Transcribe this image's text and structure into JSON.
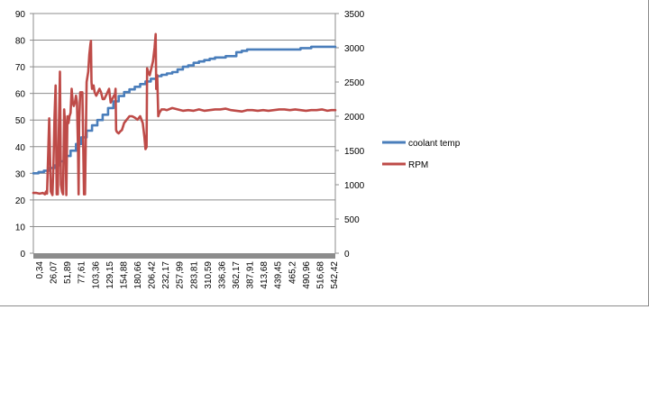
{
  "chart_data": {
    "type": "line",
    "title": "",
    "xlabel": "",
    "ylabel": "",
    "y_left": {
      "ticks": [
        0,
        10,
        20,
        30,
        40,
        50,
        60,
        70,
        80,
        90
      ],
      "lim": [
        0,
        90
      ]
    },
    "y_right": {
      "ticks": [
        0,
        500,
        1000,
        1500,
        2000,
        2500,
        3000,
        3500
      ],
      "lim": [
        0,
        3500
      ]
    },
    "x_tick_labels": [
      "0,34",
      "26,07",
      "51,89",
      "77,61",
      "103,36",
      "129,15",
      "154,88",
      "180,66",
      "206,42",
      "232,17",
      "257,99",
      "283,81",
      "310,59",
      "336,36",
      "362,17",
      "387,91",
      "413,68",
      "439,45",
      "465,2",
      "490,96",
      "516,68",
      "542,42"
    ],
    "x_range": [
      0.34,
      565
    ],
    "gridlines": "horizontal",
    "legend_position": "right",
    "series": [
      {
        "name": "coolant temp",
        "axis": "left",
        "color": "#4a7ebb",
        "points": [
          [
            0.34,
            30
          ],
          [
            10,
            30.5
          ],
          [
            20,
            31
          ],
          [
            30,
            32
          ],
          [
            40,
            33
          ],
          [
            50,
            34.5
          ],
          [
            60,
            36.5
          ],
          [
            70,
            38.5
          ],
          [
            80,
            41
          ],
          [
            90,
            43.5
          ],
          [
            100,
            46
          ],
          [
            110,
            48
          ],
          [
            120,
            50
          ],
          [
            130,
            52
          ],
          [
            140,
            54.5
          ],
          [
            150,
            57
          ],
          [
            160,
            59
          ],
          [
            170,
            60.5
          ],
          [
            180,
            61.5
          ],
          [
            190,
            62.5
          ],
          [
            200,
            63.5
          ],
          [
            210,
            64.5
          ],
          [
            220,
            65.5
          ],
          [
            230,
            66.5
          ],
          [
            240,
            67
          ],
          [
            250,
            67.5
          ],
          [
            260,
            68
          ],
          [
            270,
            69
          ],
          [
            280,
            70
          ],
          [
            290,
            70.5
          ],
          [
            300,
            71.5
          ],
          [
            310,
            72
          ],
          [
            320,
            72.5
          ],
          [
            330,
            73
          ],
          [
            340,
            73.5
          ],
          [
            350,
            73.5
          ],
          [
            360,
            74
          ],
          [
            370,
            74
          ],
          [
            380,
            75.5
          ],
          [
            390,
            76
          ],
          [
            400,
            76.5
          ],
          [
            420,
            76.5
          ],
          [
            440,
            76.5
          ],
          [
            460,
            76.5
          ],
          [
            480,
            76.5
          ],
          [
            500,
            77
          ],
          [
            520,
            77.5
          ],
          [
            540,
            77.5
          ],
          [
            565,
            77.5
          ]
        ]
      },
      {
        "name": "RPM",
        "axis": "right",
        "color": "#be4b48",
        "points": [
          [
            0.34,
            880
          ],
          [
            6,
            880
          ],
          [
            12,
            870
          ],
          [
            18,
            880
          ],
          [
            22,
            860
          ],
          [
            24,
            900
          ],
          [
            26,
            870
          ],
          [
            30,
            1970
          ],
          [
            33,
            900
          ],
          [
            36,
            850
          ],
          [
            38,
            1300
          ],
          [
            40,
            2000
          ],
          [
            42,
            2450
          ],
          [
            44,
            860
          ],
          [
            46,
            860
          ],
          [
            48,
            1800
          ],
          [
            50,
            2650
          ],
          [
            52,
            1000
          ],
          [
            54,
            900
          ],
          [
            56,
            860
          ],
          [
            58,
            2100
          ],
          [
            60,
            1850
          ],
          [
            62,
            850
          ],
          [
            64,
            2000
          ],
          [
            66,
            1900
          ],
          [
            68,
            2000
          ],
          [
            70,
            2050
          ],
          [
            72,
            2400
          ],
          [
            74,
            2200
          ],
          [
            76,
            2150
          ],
          [
            78,
            2200
          ],
          [
            80,
            2300
          ],
          [
            82,
            2200
          ],
          [
            84,
            1500
          ],
          [
            85,
            860
          ],
          [
            86,
            1900
          ],
          [
            88,
            2350
          ],
          [
            92,
            2350
          ],
          [
            95,
            860
          ],
          [
            97,
            860
          ],
          [
            100,
            2500
          ],
          [
            103,
            2650
          ],
          [
            105,
            2900
          ],
          [
            107,
            3050
          ],
          [
            108,
            3100
          ],
          [
            109,
            2500
          ],
          [
            110,
            2400
          ],
          [
            113,
            2450
          ],
          [
            115,
            2350
          ],
          [
            118,
            2300
          ],
          [
            121,
            2350
          ],
          [
            124,
            2400
          ],
          [
            127,
            2350
          ],
          [
            130,
            2250
          ],
          [
            133,
            2250
          ],
          [
            136,
            2300
          ],
          [
            139,
            2350
          ],
          [
            142,
            2400
          ],
          [
            145,
            2200
          ],
          [
            148,
            2250
          ],
          [
            151,
            2300
          ],
          [
            153,
            2320
          ],
          [
            154,
            2400
          ],
          [
            155,
            1800
          ],
          [
            156,
            1780
          ],
          [
            158,
            1760
          ],
          [
            160,
            1750
          ],
          [
            163,
            1780
          ],
          [
            166,
            1800
          ],
          [
            170,
            1900
          ],
          [
            175,
            1950
          ],
          [
            180,
            2000
          ],
          [
            185,
            2000
          ],
          [
            190,
            1980
          ],
          [
            195,
            1950
          ],
          [
            200,
            2000
          ],
          [
            205,
            1900
          ],
          [
            208,
            1700
          ],
          [
            210,
            1520
          ],
          [
            212,
            1550
          ],
          [
            213,
            2700
          ],
          [
            215,
            2650
          ],
          [
            218,
            2600
          ],
          [
            221,
            2700
          ],
          [
            224,
            2800
          ],
          [
            227,
            3000
          ],
          [
            229,
            3200
          ],
          [
            230,
            2400
          ],
          [
            231,
            2550
          ],
          [
            232,
            2600
          ],
          [
            234,
            2000
          ],
          [
            236,
            2050
          ],
          [
            240,
            2100
          ],
          [
            245,
            2100
          ],
          [
            250,
            2090
          ],
          [
            260,
            2120
          ],
          [
            270,
            2100
          ],
          [
            280,
            2080
          ],
          [
            290,
            2090
          ],
          [
            300,
            2080
          ],
          [
            310,
            2100
          ],
          [
            320,
            2080
          ],
          [
            330,
            2090
          ],
          [
            340,
            2100
          ],
          [
            350,
            2100
          ],
          [
            360,
            2110
          ],
          [
            370,
            2090
          ],
          [
            380,
            2080
          ],
          [
            390,
            2070
          ],
          [
            400,
            2090
          ],
          [
            410,
            2090
          ],
          [
            420,
            2080
          ],
          [
            430,
            2090
          ],
          [
            440,
            2080
          ],
          [
            450,
            2090
          ],
          [
            460,
            2100
          ],
          [
            470,
            2100
          ],
          [
            480,
            2090
          ],
          [
            490,
            2100
          ],
          [
            500,
            2090
          ],
          [
            510,
            2080
          ],
          [
            520,
            2090
          ],
          [
            530,
            2090
          ],
          [
            540,
            2100
          ],
          [
            550,
            2080
          ],
          [
            558,
            2090
          ],
          [
            565,
            2090
          ]
        ]
      }
    ]
  }
}
